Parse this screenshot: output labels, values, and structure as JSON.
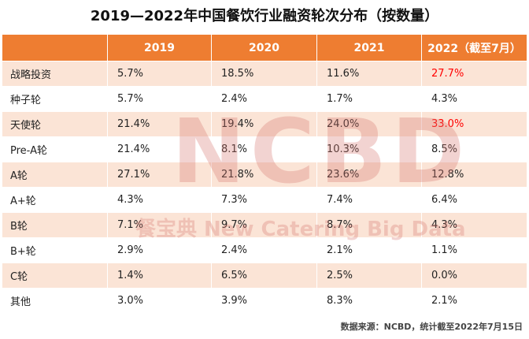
{
  "chart_data": {
    "type": "table",
    "title": "2019—2022年中国餐饮行业融资轮次分布（按数量）",
    "columns": [
      "",
      "2019",
      "2020",
      "2021",
      "2022（截至7月）"
    ],
    "rows": [
      {
        "label": "战略投资",
        "values": [
          "5.7%",
          "18.5%",
          "11.6%",
          "27.7%"
        ],
        "highlight_last": true
      },
      {
        "label": "种子轮",
        "values": [
          "5.7%",
          "2.4%",
          "1.7%",
          "4.3%"
        ],
        "highlight_last": false
      },
      {
        "label": "天使轮",
        "values": [
          "21.4%",
          "19.4%",
          "24.0%",
          "33.0%"
        ],
        "highlight_last": true
      },
      {
        "label": "Pre-A轮",
        "values": [
          "21.4%",
          "8.1%",
          "10.3%",
          "8.5%"
        ],
        "highlight_last": false
      },
      {
        "label": "A轮",
        "values": [
          "27.1%",
          "21.8%",
          "23.6%",
          "12.8%"
        ],
        "highlight_last": false
      },
      {
        "label": "A+轮",
        "values": [
          "4.3%",
          "7.3%",
          "7.4%",
          "6.4%"
        ],
        "highlight_last": false
      },
      {
        "label": "B轮",
        "values": [
          "7.1%",
          "9.7%",
          "8.7%",
          "4.3%"
        ],
        "highlight_last": false
      },
      {
        "label": "B+轮",
        "values": [
          "2.9%",
          "2.4%",
          "2.1%",
          "1.1%"
        ],
        "highlight_last": false
      },
      {
        "label": "C轮",
        "values": [
          "1.4%",
          "6.5%",
          "2.5%",
          "0.0%"
        ],
        "highlight_last": false
      },
      {
        "label": "其他",
        "values": [
          "3.0%",
          "3.9%",
          "8.3%",
          "2.1%"
        ],
        "highlight_last": false
      }
    ],
    "colors": {
      "header": "#ee7d31",
      "stripe": "#fbe4d6",
      "highlight": "#ff0000"
    }
  },
  "watermark": {
    "logo": "NCBD",
    "text": "餐宝典 New Catering Big Data"
  },
  "source": "数据来源：NCBD，统计截至2022年7月15日"
}
